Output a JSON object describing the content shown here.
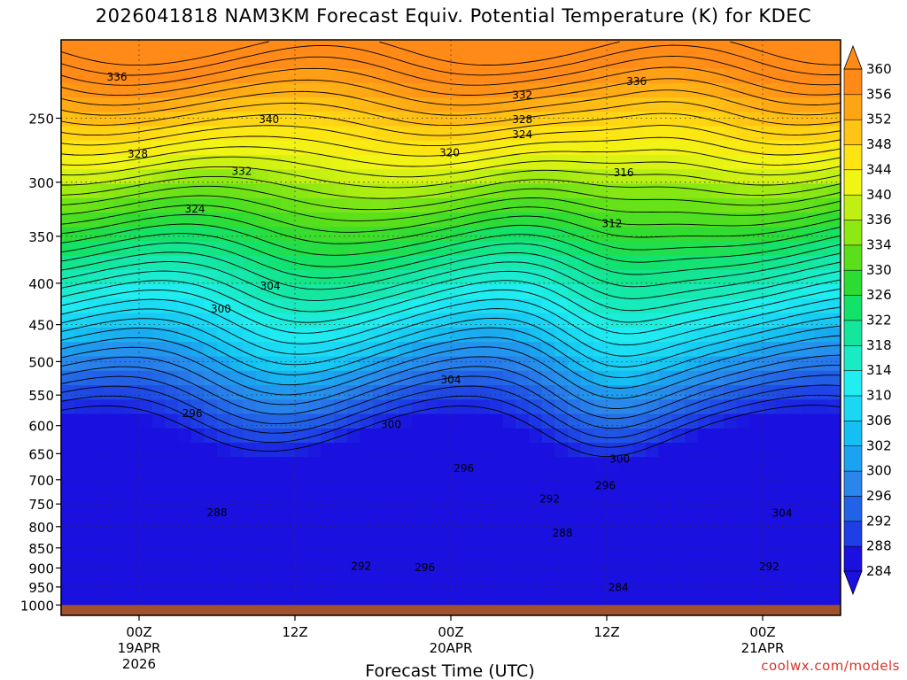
{
  "chart_data": {
    "type": "heatmap",
    "title": "2026041818 NAM3KM Forecast Equiv. Potential Temperature (K) for KDEC",
    "xlabel": "Forecast Time (UTC)",
    "ylabel": "",
    "x_ticks": [
      {
        "label": "00Z",
        "sub": [
          "19APR",
          "2026"
        ],
        "hours": 6
      },
      {
        "label": "12Z",
        "sub": [],
        "hours": 18
      },
      {
        "label": "00Z",
        "sub": [
          "20APR"
        ],
        "hours": 30
      },
      {
        "label": "12Z",
        "sub": [],
        "hours": 42
      },
      {
        "label": "00Z",
        "sub": [
          "21APR"
        ],
        "hours": 54
      }
    ],
    "x_range_hours": [
      0,
      60
    ],
    "y_axis": "pressure (log, inverted)",
    "y_ticks": [
      250,
      300,
      350,
      400,
      450,
      500,
      550,
      600,
      650,
      700,
      750,
      800,
      850,
      900,
      950,
      1000
    ],
    "y_range": [
      200,
      1030
    ],
    "grid": true,
    "colorbar": {
      "levels": [
        284,
        288,
        292,
        296,
        300,
        302,
        306,
        310,
        314,
        318,
        322,
        326,
        330,
        334,
        336,
        340,
        344,
        348,
        352,
        356,
        360
      ],
      "colors": [
        "#1a10e0",
        "#1e3fe6",
        "#2262e6",
        "#2a86ea",
        "#1ba2f0",
        "#16bff2",
        "#1ad8f4",
        "#20eef0",
        "#19ebc4",
        "#14e69b",
        "#12e26a",
        "#2ddc33",
        "#5ae01a",
        "#8ee812",
        "#bff012",
        "#f0f514",
        "#ffe312",
        "#ffc414",
        "#ffa415",
        "#ff8a18"
      ],
      "placement": "right"
    },
    "contour_labels": [
      {
        "text": "336",
        "h": 4.3,
        "p": 224
      },
      {
        "text": "340",
        "h": 16.0,
        "p": 253
      },
      {
        "text": "332",
        "h": 35.5,
        "p": 236
      },
      {
        "text": "336",
        "h": 44.3,
        "p": 227
      },
      {
        "text": "328",
        "h": 35.5,
        "p": 253
      },
      {
        "text": "324",
        "h": 35.5,
        "p": 264
      },
      {
        "text": "328",
        "h": 5.9,
        "p": 279
      },
      {
        "text": "332",
        "h": 13.9,
        "p": 293
      },
      {
        "text": "320",
        "h": 29.9,
        "p": 278
      },
      {
        "text": "316",
        "h": 43.3,
        "p": 294
      },
      {
        "text": "324",
        "h": 10.3,
        "p": 326
      },
      {
        "text": "312",
        "h": 42.4,
        "p": 340
      },
      {
        "text": "304",
        "h": 16.1,
        "p": 406
      },
      {
        "text": "300",
        "h": 12.3,
        "p": 434
      },
      {
        "text": "296",
        "h": 10.1,
        "p": 584
      },
      {
        "text": "304",
        "h": 30.0,
        "p": 531
      },
      {
        "text": "300",
        "h": 25.4,
        "p": 603
      },
      {
        "text": "300",
        "h": 43.0,
        "p": 665
      },
      {
        "text": "296",
        "h": 31.0,
        "p": 683
      },
      {
        "text": "296",
        "h": 41.9,
        "p": 717
      },
      {
        "text": "292",
        "h": 37.6,
        "p": 745
      },
      {
        "text": "288",
        "h": 12.0,
        "p": 775
      },
      {
        "text": "288",
        "h": 38.6,
        "p": 821
      },
      {
        "text": "304",
        "h": 55.5,
        "p": 776
      },
      {
        "text": "292",
        "h": 23.1,
        "p": 902
      },
      {
        "text": "296",
        "h": 28.0,
        "p": 906
      },
      {
        "text": "284",
        "h": 42.9,
        "p": 958
      },
      {
        "text": "292",
        "h": 54.5,
        "p": 903
      }
    ],
    "ground_level_p": 1000
  },
  "footer": {
    "credit": "coolwx.com/models"
  }
}
